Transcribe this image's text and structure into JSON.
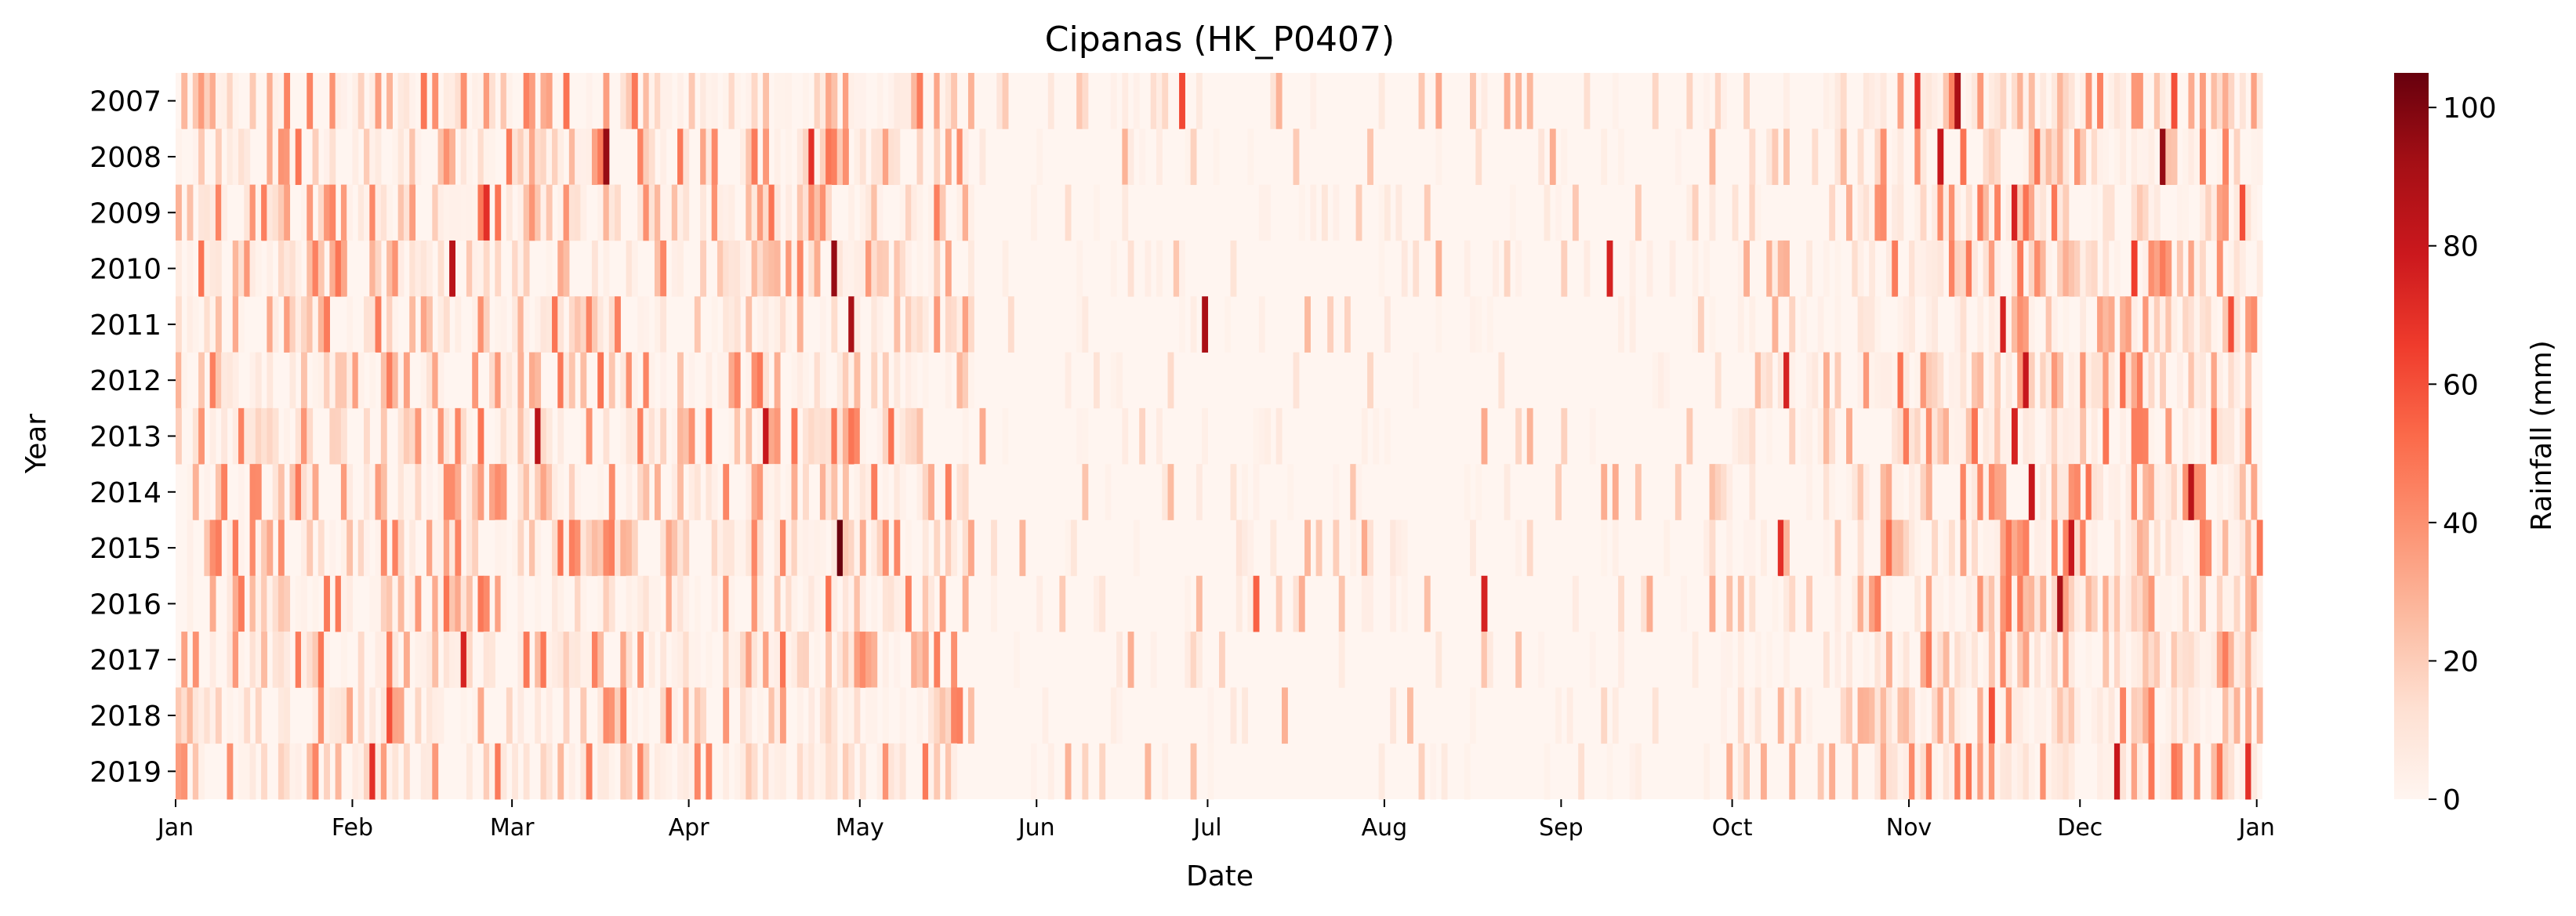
{
  "chart_data": {
    "type": "heatmap",
    "title": "Cipanas (HK_P0407)",
    "xlabel": "Date",
    "ylabel": "Year",
    "colorbar_label": "Rainfall (mm)",
    "colormap": "Reds",
    "color_range": [
      0,
      105
    ],
    "colorbar_ticks": [
      "0",
      "20",
      "40",
      "60",
      "80",
      "100"
    ],
    "colorbar_tick_values": [
      0,
      20,
      40,
      60,
      80,
      100
    ],
    "x_ticks": [
      "Jan",
      "Feb",
      "Mar",
      "Apr",
      "May",
      "Jun",
      "Jul",
      "Aug",
      "Sep",
      "Oct",
      "Nov",
      "Dec",
      "Jan"
    ],
    "x_tick_days": [
      0,
      31,
      59,
      90,
      120,
      151,
      181,
      212,
      243,
      273,
      304,
      334,
      365
    ],
    "days_per_row": 366,
    "years": [
      "2007",
      "2008",
      "2009",
      "2010",
      "2011",
      "2012",
      "2013",
      "2014",
      "2015",
      "2016",
      "2017",
      "2018",
      "2019"
    ],
    "highlight_cells": [
      {
        "year": "2007",
        "date": "Jun 26",
        "value": 62
      },
      {
        "year": "2007",
        "date": "Nov 2",
        "value": 70
      },
      {
        "year": "2007",
        "date": "Nov 9",
        "value": 90
      },
      {
        "year": "2007",
        "date": "Dec 17",
        "value": 60
      },
      {
        "year": "2008",
        "date": "Mar 17",
        "value": 95
      },
      {
        "year": "2008",
        "date": "Apr 22",
        "value": 70
      },
      {
        "year": "2008",
        "date": "Nov 6",
        "value": 80
      },
      {
        "year": "2008",
        "date": "Dec 15",
        "value": 95
      },
      {
        "year": "2009",
        "date": "Feb 24",
        "value": 70
      },
      {
        "year": "2009",
        "date": "Nov 19",
        "value": 75
      },
      {
        "year": "2009",
        "date": "Dec 29",
        "value": 60
      },
      {
        "year": "2010",
        "date": "Feb 18",
        "value": 85
      },
      {
        "year": "2010",
        "date": "Apr 26",
        "value": 95
      },
      {
        "year": "2010",
        "date": "Sep 9",
        "value": 75
      },
      {
        "year": "2010",
        "date": "Dec 10",
        "value": 65
      },
      {
        "year": "2011",
        "date": "Apr 29",
        "value": 90
      },
      {
        "year": "2011",
        "date": "Jun 30",
        "value": 90
      },
      {
        "year": "2011",
        "date": "Nov 17",
        "value": 75
      },
      {
        "year": "2011",
        "date": "Dec 27",
        "value": 60
      },
      {
        "year": "2012",
        "date": "Oct 10",
        "value": 75
      },
      {
        "year": "2012",
        "date": "Nov 21",
        "value": 80
      },
      {
        "year": "2013",
        "date": "Mar 5",
        "value": 85
      },
      {
        "year": "2013",
        "date": "Apr 14",
        "value": 80
      },
      {
        "year": "2013",
        "date": "Nov 19",
        "value": 75
      },
      {
        "year": "2014",
        "date": "Nov 22",
        "value": 80
      },
      {
        "year": "2014",
        "date": "Dec 20",
        "value": 85
      },
      {
        "year": "2015",
        "date": "Apr 27",
        "value": 104
      },
      {
        "year": "2015",
        "date": "Oct 9",
        "value": 70
      },
      {
        "year": "2015",
        "date": "Nov 29",
        "value": 80
      },
      {
        "year": "2016",
        "date": "Jul 9",
        "value": 55
      },
      {
        "year": "2016",
        "date": "Aug 18",
        "value": 75
      },
      {
        "year": "2016",
        "date": "Nov 27",
        "value": 90
      },
      {
        "year": "2017",
        "date": "Feb 20",
        "value": 75
      },
      {
        "year": "2018",
        "date": "Feb 7",
        "value": 60
      },
      {
        "year": "2018",
        "date": "Nov 15",
        "value": 60
      },
      {
        "year": "2019",
        "date": "Feb 4",
        "value": 70
      },
      {
        "year": "2019",
        "date": "Dec 7",
        "value": 80
      },
      {
        "year": "2019",
        "date": "Dec 30",
        "value": 70
      }
    ]
  }
}
